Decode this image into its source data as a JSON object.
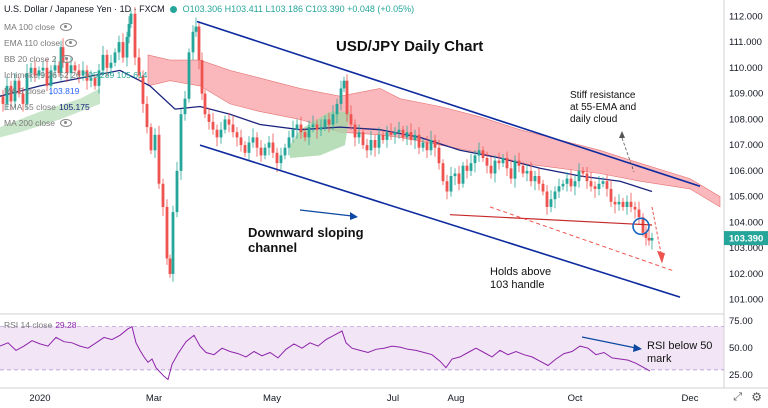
{
  "header": {
    "symbol": "U.S. Dollar / Japanese Yen · 1D · FXCM",
    "ohlc": "O103.306  H103.411  L103.186  C103.390  +0.048 (+0.05%)"
  },
  "legend": [
    {
      "label": "MA 100 close",
      "value": "",
      "color": "#9e9e9e"
    },
    {
      "label": "EMA 110 close",
      "value": "",
      "color": "#9e9e9e"
    },
    {
      "label": "BB 20 close 2",
      "value": "",
      "color": "#9e9e9e"
    },
    {
      "label": "Ichimoku 9 26 52 26",
      "value": "105.289  105.614",
      "color": "#26a69a"
    },
    {
      "label": "MA 5 close",
      "value": "103.819",
      "color": "#2962ff"
    },
    {
      "label": "EMA 55 close",
      "value": "105.175",
      "color": "#1a237e"
    },
    {
      "label": "MA 200 close",
      "value": "",
      "color": "#9e9e9e"
    }
  ],
  "rsi_label": "RSI 14 close",
  "rsi_value": "29.28",
  "colors": {
    "up": "#26a69a",
    "down": "#ef5350",
    "ema55": "#1a237e",
    "channel": "#0d2a9e",
    "cloud_bull": "#a5d6a7",
    "cloud_bear": "#f8a0a6",
    "rsi": "#8e24aa",
    "rsi_band": "#e9d6f0"
  },
  "chart_data": {
    "type": "candlestick",
    "title": "USD/JPY Daily Chart",
    "price_axis": {
      "ticks": [
        "112.000",
        "111.000",
        "110.000",
        "109.000",
        "108.000",
        "107.000",
        "106.000",
        "105.000",
        "104.000",
        "103.000",
        "102.000",
        "101.000"
      ],
      "last_price": "103.390",
      "range": [
        100.6,
        112.4
      ]
    },
    "time_axis": {
      "ticks": [
        "2020",
        "Mar",
        "May",
        "Jul",
        "Aug",
        "Oct",
        "Dec"
      ]
    },
    "rsi_axis": {
      "ticks": [
        "75.00",
        "50.00",
        "25.00"
      ],
      "range": [
        15,
        78
      ],
      "band": [
        30,
        70
      ]
    },
    "annotations": [
      {
        "text": "Stiff resistance",
        "line": 1
      },
      {
        "text": "at 55-EMA and",
        "line": 2
      },
      {
        "text": "daily cloud",
        "line": 3
      },
      {
        "text": "Downward sloping",
        "line": 1
      },
      {
        "text": "channel",
        "line": 2
      },
      {
        "text": "Holds above",
        "line": 1
      },
      {
        "text": "103 handle",
        "line": 2
      },
      {
        "text": "RSI below 50",
        "line": 1
      },
      {
        "text": "mark",
        "line": 2
      }
    ],
    "price_path": [
      [
        0,
        108.9
      ],
      [
        4,
        108.6
      ],
      [
        8,
        109.3
      ],
      [
        12,
        108.7
      ],
      [
        16,
        109.5
      ],
      [
        20,
        109.0
      ],
      [
        24,
        108.6
      ],
      [
        28,
        109.8
      ],
      [
        32,
        110.0
      ],
      [
        36,
        109.7
      ],
      [
        40,
        109.9
      ],
      [
        44,
        110.0
      ],
      [
        48,
        109.3
      ],
      [
        52,
        109.9
      ],
      [
        56,
        110.1
      ],
      [
        60,
        109.8
      ],
      [
        62,
        110.8
      ],
      [
        64,
        110.2
      ],
      [
        68,
        109.8
      ],
      [
        72,
        110.1
      ],
      [
        76,
        109.9
      ],
      [
        80,
        109.7
      ],
      [
        84,
        109.9
      ],
      [
        88,
        109.5
      ],
      [
        92,
        109.6
      ],
      [
        96,
        109.3
      ],
      [
        100,
        109.9
      ],
      [
        104,
        110.5
      ],
      [
        108,
        110.0
      ],
      [
        112,
        110.2
      ],
      [
        116,
        110.6
      ],
      [
        120,
        111.0
      ],
      [
        124,
        110.4
      ],
      [
        128,
        111.2
      ],
      [
        130,
        111.7
      ],
      [
        132,
        112.1
      ],
      [
        136,
        110.4
      ],
      [
        140,
        109.7
      ],
      [
        144,
        108.6
      ],
      [
        148,
        107.7
      ],
      [
        152,
        106.8
      ],
      [
        156,
        107.4
      ],
      [
        160,
        105.5
      ],
      [
        164,
        104.6
      ],
      [
        168,
        102.6
      ],
      [
        171,
        102.0
      ],
      [
        174,
        104.4
      ],
      [
        178,
        106.0
      ],
      [
        182,
        108.2
      ],
      [
        186,
        108.8
      ],
      [
        190,
        110.6
      ],
      [
        194,
        111.4
      ],
      [
        197,
        111.6
      ],
      [
        200,
        110.3
      ],
      [
        203,
        109.0
      ],
      [
        206,
        108.2
      ],
      [
        210,
        107.9
      ],
      [
        214,
        107.6
      ],
      [
        218,
        107.3
      ],
      [
        222,
        107.6
      ],
      [
        226,
        108.0
      ],
      [
        230,
        107.8
      ],
      [
        234,
        107.5
      ],
      [
        238,
        107.3
      ],
      [
        242,
        107.0
      ],
      [
        246,
        106.7
      ],
      [
        250,
        107.1
      ],
      [
        254,
        107.3
      ],
      [
        258,
        106.9
      ],
      [
        262,
        106.6
      ],
      [
        266,
        106.9
      ],
      [
        270,
        107.1
      ],
      [
        274,
        106.7
      ],
      [
        278,
        106.3
      ],
      [
        282,
        106.6
      ],
      [
        286,
        106.9
      ],
      [
        290,
        107.3
      ],
      [
        294,
        107.6
      ],
      [
        298,
        107.8
      ],
      [
        302,
        107.5
      ],
      [
        306,
        107.3
      ],
      [
        310,
        107.7
      ],
      [
        314,
        107.8
      ],
      [
        318,
        107.6
      ],
      [
        322,
        107.7
      ],
      [
        326,
        108.0
      ],
      [
        330,
        107.8
      ],
      [
        334,
        108.2
      ],
      [
        338,
        108.6
      ],
      [
        342,
        109.2
      ],
      [
        345,
        109.5
      ],
      [
        348,
        108.2
      ],
      [
        352,
        107.8
      ],
      [
        356,
        107.3
      ],
      [
        360,
        107.5
      ],
      [
        364,
        107.0
      ],
      [
        368,
        106.8
      ],
      [
        372,
        107.2
      ],
      [
        376,
        106.9
      ],
      [
        380,
        107.4
      ],
      [
        384,
        107.2
      ],
      [
        388,
        107.5
      ],
      [
        392,
        107.4
      ],
      [
        396,
        107.5
      ],
      [
        400,
        107.6
      ],
      [
        404,
        107.3
      ],
      [
        408,
        107.5
      ],
      [
        412,
        107.2
      ],
      [
        416,
        107.4
      ],
      [
        420,
        106.9
      ],
      [
        424,
        107.1
      ],
      [
        428,
        106.8
      ],
      [
        432,
        107.2
      ],
      [
        436,
        106.9
      ],
      [
        440,
        106.3
      ],
      [
        444,
        105.6
      ],
      [
        448,
        105.2
      ],
      [
        452,
        105.8
      ],
      [
        456,
        105.9
      ],
      [
        460,
        105.5
      ],
      [
        464,
        106.2
      ],
      [
        468,
        106.0
      ],
      [
        472,
        106.3
      ],
      [
        476,
        106.6
      ],
      [
        480,
        106.8
      ],
      [
        484,
        106.5
      ],
      [
        488,
        106.2
      ],
      [
        492,
        105.9
      ],
      [
        496,
        106.4
      ],
      [
        500,
        106.3
      ],
      [
        504,
        106.5
      ],
      [
        508,
        106.1
      ],
      [
        512,
        105.7
      ],
      [
        516,
        106.4
      ],
      [
        520,
        106.2
      ],
      [
        524,
        105.9
      ],
      [
        528,
        106.0
      ],
      [
        532,
        105.6
      ],
      [
        536,
        105.8
      ],
      [
        540,
        105.5
      ],
      [
        544,
        105.2
      ],
      [
        548,
        104.6
      ],
      [
        552,
        104.9
      ],
      [
        556,
        105.2
      ],
      [
        560,
        105.4
      ],
      [
        564,
        105.5
      ],
      [
        568,
        105.7
      ],
      [
        572,
        105.4
      ],
      [
        576,
        105.6
      ],
      [
        580,
        106.0
      ],
      [
        584,
        105.9
      ],
      [
        588,
        105.6
      ],
      [
        592,
        105.4
      ],
      [
        596,
        105.3
      ],
      [
        600,
        105.5
      ],
      [
        604,
        105.6
      ],
      [
        608,
        105.3
      ],
      [
        612,
        104.8
      ],
      [
        616,
        104.7
      ],
      [
        620,
        104.8
      ],
      [
        624,
        104.6
      ],
      [
        628,
        104.8
      ],
      [
        632,
        104.6
      ],
      [
        636,
        104.5
      ],
      [
        640,
        104.2
      ],
      [
        644,
        103.6
      ],
      [
        647,
        103.4
      ],
      [
        650,
        103.3
      ],
      [
        653,
        103.4
      ]
    ],
    "rsi_path": [
      [
        0,
        52
      ],
      [
        8,
        55
      ],
      [
        16,
        48
      ],
      [
        24,
        52
      ],
      [
        32,
        57
      ],
      [
        40,
        54
      ],
      [
        48,
        52
      ],
      [
        56,
        60
      ],
      [
        64,
        56
      ],
      [
        72,
        55
      ],
      [
        80,
        52
      ],
      [
        88,
        50
      ],
      [
        96,
        55
      ],
      [
        104,
        60
      ],
      [
        112,
        58
      ],
      [
        120,
        62
      ],
      [
        128,
        68
      ],
      [
        132,
        70
      ],
      [
        136,
        55
      ],
      [
        140,
        48
      ],
      [
        144,
        42
      ],
      [
        148,
        37
      ],
      [
        152,
        40
      ],
      [
        156,
        32
      ],
      [
        160,
        28
      ],
      [
        164,
        24
      ],
      [
        168,
        21
      ],
      [
        172,
        35
      ],
      [
        178,
        45
      ],
      [
        186,
        56
      ],
      [
        194,
        62
      ],
      [
        200,
        52
      ],
      [
        206,
        46
      ],
      [
        214,
        44
      ],
      [
        222,
        50
      ],
      [
        230,
        47
      ],
      [
        238,
        45
      ],
      [
        246,
        42
      ],
      [
        254,
        47
      ],
      [
        262,
        43
      ],
      [
        270,
        46
      ],
      [
        278,
        41
      ],
      [
        286,
        49
      ],
      [
        294,
        54
      ],
      [
        302,
        50
      ],
      [
        310,
        55
      ],
      [
        318,
        52
      ],
      [
        326,
        58
      ],
      [
        334,
        62
      ],
      [
        342,
        66
      ],
      [
        346,
        55
      ],
      [
        352,
        50
      ],
      [
        360,
        48
      ],
      [
        368,
        46
      ],
      [
        376,
        49
      ],
      [
        384,
        50
      ],
      [
        392,
        52
      ],
      [
        400,
        51
      ],
      [
        408,
        49
      ],
      [
        416,
        48
      ],
      [
        424,
        46
      ],
      [
        432,
        44
      ],
      [
        440,
        38
      ],
      [
        446,
        32
      ],
      [
        452,
        40
      ],
      [
        460,
        42
      ],
      [
        468,
        46
      ],
      [
        476,
        50
      ],
      [
        484,
        46
      ],
      [
        492,
        42
      ],
      [
        500,
        48
      ],
      [
        508,
        44
      ],
      [
        516,
        47
      ],
      [
        524,
        44
      ],
      [
        532,
        42
      ],
      [
        540,
        38
      ],
      [
        548,
        34
      ],
      [
        556,
        40
      ],
      [
        564,
        45
      ],
      [
        572,
        47
      ],
      [
        580,
        52
      ],
      [
        588,
        50
      ],
      [
        596,
        44
      ],
      [
        604,
        46
      ],
      [
        612,
        41
      ],
      [
        620,
        40
      ],
      [
        628,
        39
      ],
      [
        636,
        36
      ],
      [
        644,
        32
      ],
      [
        650,
        29
      ]
    ],
    "ema55_path": [
      [
        0,
        108.9
      ],
      [
        40,
        109.3
      ],
      [
        80,
        109.6
      ],
      [
        120,
        109.9
      ],
      [
        150,
        109.3
      ],
      [
        175,
        108.4
      ],
      [
        200,
        108.5
      ],
      [
        230,
        108.2
      ],
      [
        260,
        107.8
      ],
      [
        300,
        107.6
      ],
      [
        340,
        107.7
      ],
      [
        380,
        107.6
      ],
      [
        420,
        107.3
      ],
      [
        460,
        106.8
      ],
      [
        500,
        106.5
      ],
      [
        540,
        106.1
      ],
      [
        580,
        105.8
      ],
      [
        620,
        105.6
      ],
      [
        652,
        105.2
      ]
    ],
    "channel": [
      {
        "name": "upper",
        "from": [
          197,
          111.8
        ],
        "to": [
          700,
          105.4
        ]
      },
      {
        "name": "lower",
        "from": [
          200,
          107.0
        ],
        "to": [
          680,
          101.1
        ]
      }
    ],
    "support": {
      "from": [
        450,
        104.3
      ],
      "to": [
        652,
        103.9
      ]
    },
    "projection": {
      "from": [
        490,
        104.6
      ],
      "to": [
        675,
        102.1
      ]
    },
    "cloud_bear": [
      [
        148,
        110.5
      ],
      [
        170,
        110.3
      ],
      [
        200,
        110.3
      ],
      [
        230,
        109.9
      ],
      [
        260,
        109.6
      ],
      [
        300,
        109.2
      ],
      [
        340,
        108.9
      ],
      [
        380,
        109.2
      ],
      [
        400,
        108.8
      ],
      [
        440,
        108.5
      ],
      [
        480,
        108.1
      ],
      [
        520,
        107.6
      ],
      [
        560,
        107.2
      ],
      [
        600,
        106.8
      ],
      [
        640,
        106.3
      ],
      [
        690,
        105.7
      ],
      [
        720,
        105.0
      ],
      [
        720,
        104.6
      ],
      [
        690,
        105.3
      ],
      [
        640,
        105.6
      ],
      [
        600,
        105.9
      ],
      [
        560,
        106.1
      ],
      [
        520,
        106.3
      ],
      [
        480,
        106.7
      ],
      [
        440,
        107.0
      ],
      [
        400,
        107.3
      ],
      [
        380,
        107.4
      ],
      [
        340,
        107.5
      ],
      [
        300,
        108.0
      ],
      [
        260,
        108.3
      ],
      [
        230,
        108.6
      ],
      [
        200,
        109.3
      ],
      [
        170,
        109.5
      ],
      [
        148,
        109.3
      ]
    ]
  }
}
